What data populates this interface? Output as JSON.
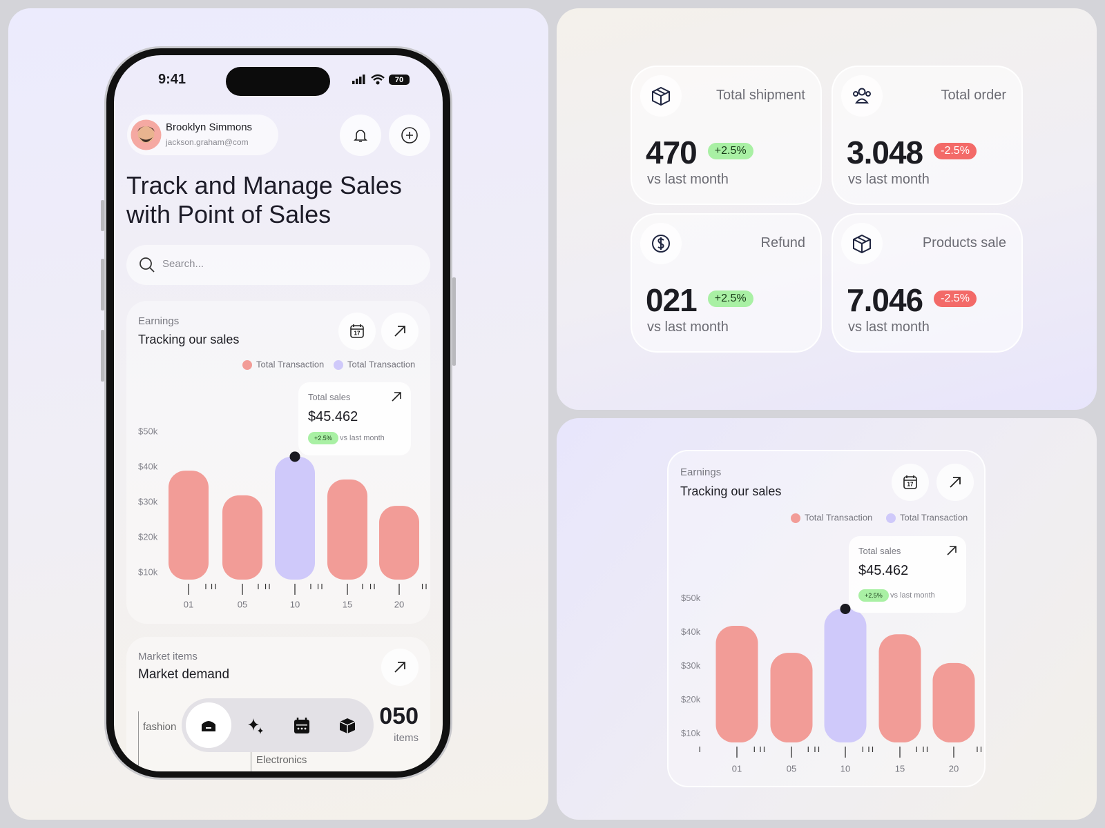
{
  "status_bar": {
    "time": "9:41",
    "battery": "70"
  },
  "profile": {
    "name": "Brooklyn Simmons",
    "email": "jackson.graham@com"
  },
  "heading": [
    "Track and Manage Sales",
    "with Point of Sales"
  ],
  "search": {
    "placeholder": "Search..."
  },
  "earnings_cards": [
    {
      "label": "Earnings",
      "title": "Tracking our sales",
      "calendar_day": "17",
      "tooltip": {
        "label": "Total sales",
        "value": "$45.462",
        "change": "+2.5%",
        "note": "vs last month"
      },
      "chart_data": {
        "type": "bar",
        "categories": [
          "01",
          "05",
          "10",
          "15",
          "20"
        ],
        "series": [
          {
            "name": "Total Transaction",
            "color": "#f29c97",
            "values": [
              39,
              32,
              null,
              36.5,
              29
            ]
          },
          {
            "name": "Total Transaction",
            "color": "#cfc9fa",
            "values": [
              null,
              null,
              43,
              null,
              null
            ]
          }
        ],
        "ylim": [
          8,
          52
        ],
        "yticks": [
          {
            "value": 10,
            "label": "$10k"
          },
          {
            "value": 20,
            "label": "$20k"
          },
          {
            "value": 30,
            "label": "$30k"
          },
          {
            "value": 40,
            "label": "$40k"
          },
          {
            "value": 50,
            "label": "$50k"
          }
        ]
      }
    },
    {
      "label": "Earnings",
      "title": "Tracking our sales",
      "calendar_day": "17",
      "tooltip": {
        "label": "Total sales",
        "value": "$45.462",
        "change": "+2.5%",
        "note": "vs last month"
      },
      "chart_data": {
        "type": "bar",
        "categories": [
          "01",
          "05",
          "10",
          "15",
          "20"
        ],
        "series": [
          {
            "name": "Total Transaction",
            "color": "#f29c97",
            "values": [
              42,
              34,
              null,
              39.5,
              31
            ]
          },
          {
            "name": "Total Transaction",
            "color": "#cfc9fa",
            "values": [
              null,
              null,
              47,
              null,
              null
            ]
          }
        ],
        "ylim": [
          7.5,
          52
        ],
        "yticks": [
          {
            "value": 10,
            "label": "$10k"
          },
          {
            "value": 20,
            "label": "$20k"
          },
          {
            "value": 30,
            "label": "$30k"
          },
          {
            "value": 40,
            "label": "$40k"
          },
          {
            "value": 50,
            "label": "$50k"
          }
        ]
      }
    }
  ],
  "market": {
    "label": "Market items",
    "title": "Market demand",
    "categories": [
      "fashion",
      "Electronics"
    ],
    "count": "050",
    "unit": "items"
  },
  "stats": [
    {
      "label": "Total shipment",
      "value": "470",
      "change": "+2.5%",
      "note": "vs last month"
    },
    {
      "label": "Total order",
      "value": "3.048",
      "change": "-2.5%",
      "note": "vs last month"
    },
    {
      "label": "Refund",
      "value": "021",
      "change": "+2.5%",
      "note": "vs last month"
    },
    {
      "label": "Products sale",
      "value": "7.046",
      "change": "-2.5%",
      "note": "vs last month"
    }
  ]
}
